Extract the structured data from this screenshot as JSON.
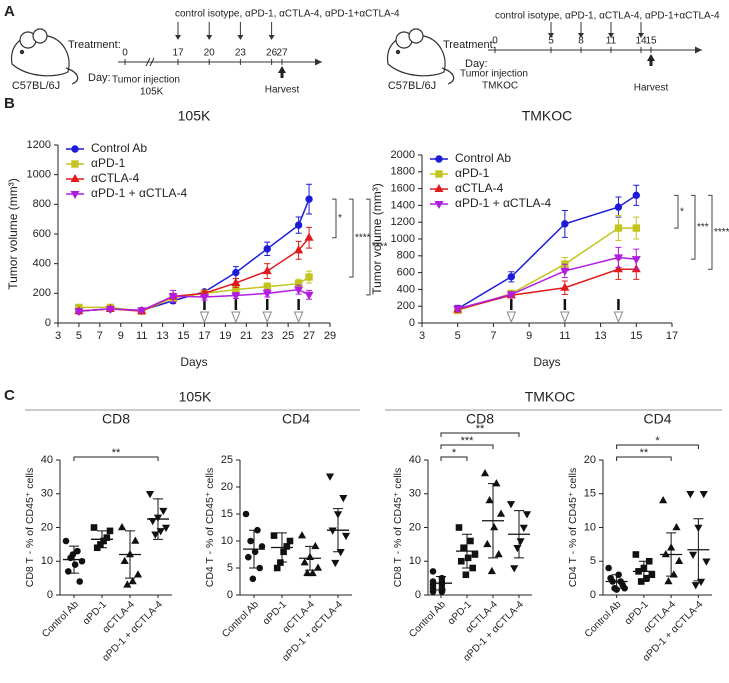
{
  "panel_labels": [
    "A",
    "B",
    "C"
  ],
  "schematics": [
    {
      "strain": "C57BL/6J",
      "treatment_label": "Treatment:",
      "day_label": "Day:",
      "drugs": "control isotype, αPD-1, αCTLA-4, αPD-1+αCTLA-4",
      "days": [
        0,
        17,
        20,
        23,
        26,
        27
      ],
      "injection": "Tumor injection",
      "model": "105K",
      "harvest": "Harvest"
    },
    {
      "strain": "C57BL/6J",
      "treatment_label": "Treatment:",
      "day_label": "Day:",
      "drugs": "control isotype, αPD-1, αCTLA-4, αPD-1+αCTLA-4",
      "days": [
        0,
        5,
        8,
        11,
        14,
        15
      ],
      "injection": "Tumor injection",
      "model": "TMKOC",
      "harvest": "Harvest"
    }
  ],
  "group_headers": [
    "105K",
    "TMKOC"
  ],
  "chart_data": [
    {
      "type": "line",
      "title": "105K",
      "x_label": "Days",
      "y_label": "Tumor volume (mm³)",
      "x": [
        5,
        8,
        11,
        14,
        17,
        20,
        23,
        26,
        27
      ],
      "xlim": [
        3,
        29
      ],
      "xticks": [
        3,
        5,
        7,
        9,
        11,
        13,
        15,
        17,
        19,
        21,
        23,
        25,
        27,
        29
      ],
      "ylim": [
        0,
        1200
      ],
      "yticks": [
        0,
        200,
        400,
        600,
        800,
        1000,
        1200
      ],
      "treatment_days": [
        17,
        20,
        23,
        26
      ],
      "series": [
        {
          "name": "Control Ab",
          "color": "#1c1cd8",
          "values": [
            80,
            95,
            85,
            150,
            210,
            340,
            500,
            660,
            835
          ],
          "errors": [
            10,
            12,
            8,
            18,
            15,
            40,
            45,
            55,
            100
          ]
        },
        {
          "name": "αPD-1",
          "color": "#c4c41e",
          "values": [
            105,
            105,
            80,
            170,
            200,
            225,
            245,
            265,
            310
          ],
          "errors": [
            10,
            10,
            8,
            20,
            15,
            25,
            25,
            30,
            40
          ]
        },
        {
          "name": "αCTLA-4",
          "color": "#e01b1b",
          "values": [
            80,
            95,
            80,
            180,
            200,
            270,
            350,
            490,
            575
          ],
          "errors": [
            10,
            10,
            8,
            20,
            15,
            30,
            50,
            60,
            70
          ]
        },
        {
          "name": "αPD-1 + αCTLA-4",
          "color": "#b11de0",
          "values": [
            80,
            95,
            85,
            180,
            175,
            185,
            200,
            225,
            190
          ],
          "errors": [
            8,
            10,
            8,
            40,
            20,
            20,
            25,
            30,
            30
          ]
        }
      ],
      "annotations": [
        "*",
        "****",
        "****"
      ]
    },
    {
      "type": "line",
      "title": "TMKOC",
      "x_label": "Days",
      "y_label": "Tumor volume (mm³)",
      "x": [
        5,
        8,
        11,
        14,
        15
      ],
      "xlim": [
        3,
        17
      ],
      "xticks": [
        3,
        5,
        7,
        9,
        11,
        13,
        15,
        17
      ],
      "ylim": [
        0,
        2000
      ],
      "yticks": [
        0,
        200,
        400,
        600,
        800,
        1000,
        1200,
        1400,
        1600,
        1800,
        2000
      ],
      "treatment_days": [
        8,
        11,
        14
      ],
      "series": [
        {
          "name": "Control Ab",
          "color": "#1c1cd8",
          "values": [
            170,
            550,
            1180,
            1380,
            1520
          ],
          "errors": [
            40,
            60,
            160,
            120,
            120
          ]
        },
        {
          "name": "αPD-1",
          "color": "#c4c41e",
          "values": [
            150,
            350,
            700,
            1130,
            1130
          ],
          "errors": [
            30,
            40,
            80,
            150,
            130
          ]
        },
        {
          "name": "αCTLA-4",
          "color": "#e01b1b",
          "values": [
            160,
            330,
            420,
            640,
            640
          ],
          "errors": [
            30,
            30,
            80,
            120,
            120
          ]
        },
        {
          "name": "αPD-1 + αCTLA-4",
          "color": "#b11de0",
          "values": [
            170,
            340,
            620,
            780,
            760
          ],
          "errors": [
            30,
            30,
            80,
            120,
            120
          ]
        }
      ],
      "annotations": [
        "*",
        "***",
        "****"
      ]
    },
    {
      "type": "dot",
      "title": "CD8",
      "y_label": "CD8 T - % of CD45⁺ cells",
      "categories": [
        "Control Ab",
        "αPD-1",
        "αCTLA-4",
        "αPD-1 + αCTLA-4"
      ],
      "ylim": [
        0,
        40
      ],
      "yticks": [
        0,
        10,
        20,
        30,
        40
      ],
      "values": [
        [
          16,
          13,
          11,
          10,
          9,
          7,
          4,
          12
        ],
        [
          20,
          19,
          17,
          16,
          15,
          14
        ],
        [
          20,
          16,
          12,
          10,
          6,
          4,
          3
        ],
        [
          30,
          25,
          23,
          22,
          20,
          19,
          18
        ]
      ],
      "means": [
        10.5,
        16.5,
        12,
        22.5
      ],
      "sds": [
        4,
        2.5,
        7,
        6
      ],
      "annotations": [
        "**"
      ]
    },
    {
      "type": "dot",
      "title": "CD4",
      "y_label": "CD4 T - % of CD45⁺ cells",
      "categories": [
        "Control Ab",
        "αPD-1",
        "αCTLA-4",
        "αPD-1 + αCTLA-4"
      ],
      "ylim": [
        0,
        25
      ],
      "yticks": [
        0,
        5,
        10,
        15,
        20,
        25
      ],
      "values": [
        [
          15,
          12,
          10,
          9,
          8,
          7,
          5,
          3
        ],
        [
          11,
          10,
          9,
          8,
          6,
          5
        ],
        [
          11,
          9,
          7,
          6,
          5,
          4,
          4
        ],
        [
          22,
          18,
          15,
          12,
          11,
          8,
          6
        ]
      ],
      "means": [
        8.5,
        8.8,
        6.8,
        12
      ],
      "sds": [
        3.5,
        2.7,
        2.2,
        4
      ],
      "annotations": []
    },
    {
      "type": "dot",
      "title": "CD8",
      "y_label": "CD8 T - % of CD45⁺ cells",
      "categories": [
        "Control Ab",
        "αPD-1",
        "αCTLA-4",
        "αPD-1 + αCTLA-4"
      ],
      "ylim": [
        0,
        40
      ],
      "yticks": [
        0,
        10,
        20,
        30,
        40
      ],
      "values": [
        [
          7,
          5,
          4,
          4,
          3,
          3,
          2,
          2,
          1,
          1
        ],
        [
          20,
          16,
          14,
          12,
          11,
          10,
          8,
          6
        ],
        [
          36,
          33,
          28,
          24,
          20,
          15,
          12,
          7
        ],
        [
          27,
          24,
          20,
          16,
          14,
          8
        ]
      ],
      "means": [
        3.5,
        13,
        22,
        18
      ],
      "sds": [
        2,
        5,
        11,
        7
      ],
      "annotations": [
        "*",
        "***",
        "**"
      ]
    },
    {
      "type": "dot",
      "title": "CD4",
      "y_label": "CD4 T - % of CD45⁺ cells",
      "categories": [
        "Control Ab",
        "αPD-1",
        "αCTLA-4",
        "αPD-1 + αCTLA-4"
      ],
      "ylim": [
        0,
        20
      ],
      "yticks": [
        0,
        5,
        10,
        15,
        20
      ],
      "values": [
        [
          4,
          3,
          2.5,
          2,
          2,
          1.5,
          1,
          1,
          0.8
        ],
        [
          6,
          5,
          4,
          3.5,
          3,
          2.5,
          2
        ],
        [
          14,
          10,
          7,
          6,
          5,
          3,
          2
        ],
        [
          15,
          15,
          10,
          6,
          5,
          2,
          1.5
        ]
      ],
      "means": [
        2,
        3.5,
        6,
        6.7
      ],
      "sds": [
        1,
        1.5,
        3.2,
        4.6
      ],
      "annotations": [
        "**",
        "*"
      ]
    }
  ]
}
